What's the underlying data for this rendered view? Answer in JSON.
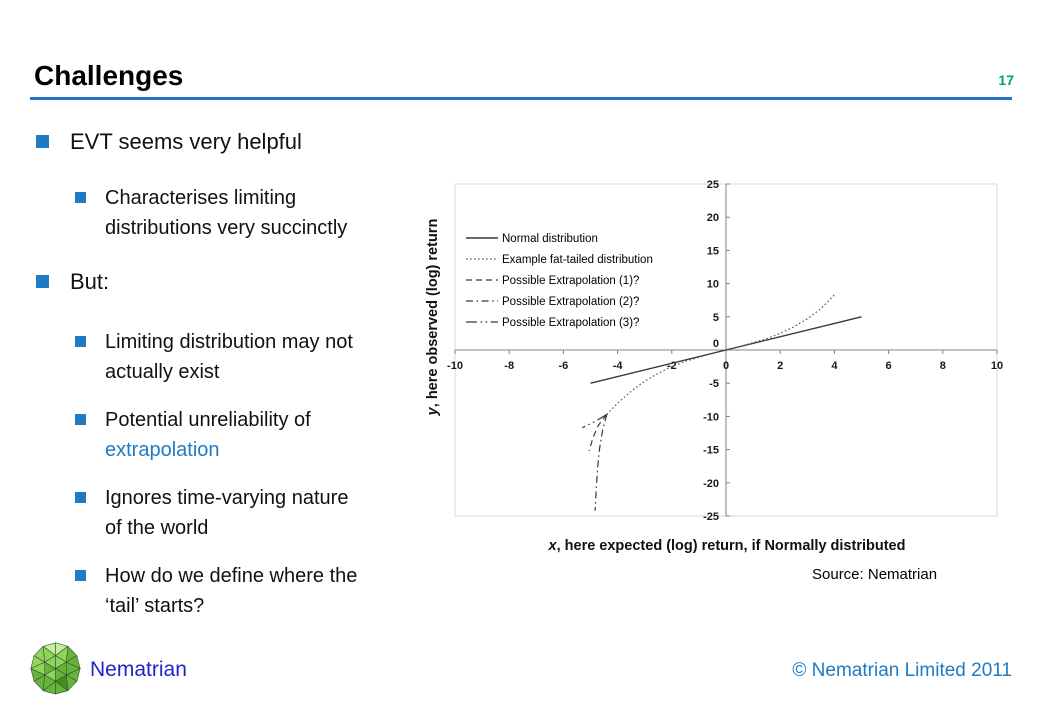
{
  "slide": {
    "title": "Challenges",
    "page_number": "17"
  },
  "theme": {
    "bullet_blue": "#1F7AC4",
    "rule_blue": "#2276C3",
    "link_blue": "#1F7AC4",
    "page_green": "#00A651",
    "brand_blue": "#2222CC",
    "copyright_blue": "#1F7AC4",
    "chart_axis": "#808080",
    "logo_green_1": "#C4EF9B",
    "logo_green_2": "#8FD45B",
    "logo_green_3": "#66B33A",
    "logo_green_4": "#3F8F22"
  },
  "bullets": [
    {
      "level": 1,
      "text": "EVT seems very helpful"
    },
    {
      "level": 2,
      "text": "Characterises limiting\ndistributions very succinctly"
    },
    {
      "level": 1,
      "text": "But:"
    },
    {
      "level": 2,
      "text": "Limiting distribution may not\nactually exist"
    },
    {
      "level": 2,
      "text": "Potential unreliability of\n",
      "link": "extrapolation"
    },
    {
      "level": 2,
      "text": "Ignores time-varying nature\nof the world"
    },
    {
      "level": 2,
      "text": "How do we define where the\n‘tail’ starts?"
    }
  ],
  "chart": {
    "source_note": "Source: Nematrian"
  },
  "chart_data": {
    "type": "line",
    "title": "",
    "xlabel": "x, here expected (log) return, if Normally distributed",
    "ylabel": "y, here observed (log) return",
    "xlim": [
      -10,
      10
    ],
    "ylim": [
      -25,
      25
    ],
    "x_ticks": [
      -10,
      -8,
      -6,
      -4,
      -2,
      0,
      2,
      4,
      6,
      8,
      10
    ],
    "y_ticks": [
      25,
      20,
      15,
      10,
      5,
      0,
      -5,
      -10,
      -15,
      -20,
      -25
    ],
    "grid": false,
    "legend_position": "top-left-inside",
    "series": [
      {
        "name": "Normal distribution",
        "style": "solid",
        "color": "#383838",
        "points": [
          [
            -5,
            -5
          ],
          [
            5,
            5
          ]
        ]
      },
      {
        "name": "Example fat-tailed distribution",
        "style": "dotted",
        "color": "#595959",
        "points": [
          [
            -4.4,
            -9.7
          ],
          [
            -4,
            -8
          ],
          [
            -3.5,
            -6.2
          ],
          [
            -3,
            -4.7
          ],
          [
            -2.5,
            -3.5
          ],
          [
            -2,
            -2.5
          ],
          [
            -1.5,
            -1.7
          ],
          [
            -1,
            -1.1
          ],
          [
            -0.5,
            -0.5
          ],
          [
            0,
            0
          ],
          [
            0.5,
            0.5
          ],
          [
            1,
            1.1
          ],
          [
            1.5,
            1.7
          ],
          [
            2,
            2.5
          ],
          [
            2.5,
            3.5
          ],
          [
            3,
            4.7
          ],
          [
            3.5,
            6.2
          ],
          [
            4,
            8.3
          ]
        ]
      },
      {
        "name": "Possible Extrapolation (1)?",
        "style": "dashed",
        "color": "#383838",
        "points": [
          [
            -4.4,
            -9.7
          ],
          [
            -4.7,
            -11.3
          ],
          [
            -4.9,
            -13.1
          ],
          [
            -5.05,
            -15.2
          ]
        ]
      },
      {
        "name": "Possible Extrapolation (2)?",
        "style": "dash-dot",
        "color": "#383838",
        "points": [
          [
            -4.4,
            -9.7
          ],
          [
            -4.55,
            -12
          ],
          [
            -4.67,
            -15
          ],
          [
            -4.74,
            -18
          ],
          [
            -4.79,
            -21
          ],
          [
            -4.83,
            -24.2
          ]
        ]
      },
      {
        "name": "Possible Extrapolation (3)?",
        "style": "long-dash-dot-dot",
        "color": "#383838",
        "points": [
          [
            -4.4,
            -9.7
          ],
          [
            -4.8,
            -10.7
          ],
          [
            -5.1,
            -11.3
          ],
          [
            -5.3,
            -11.7
          ]
        ]
      }
    ]
  },
  "footer": {
    "logo_text": "Nematrian",
    "copyright": "© Nematrian Limited 2011"
  }
}
